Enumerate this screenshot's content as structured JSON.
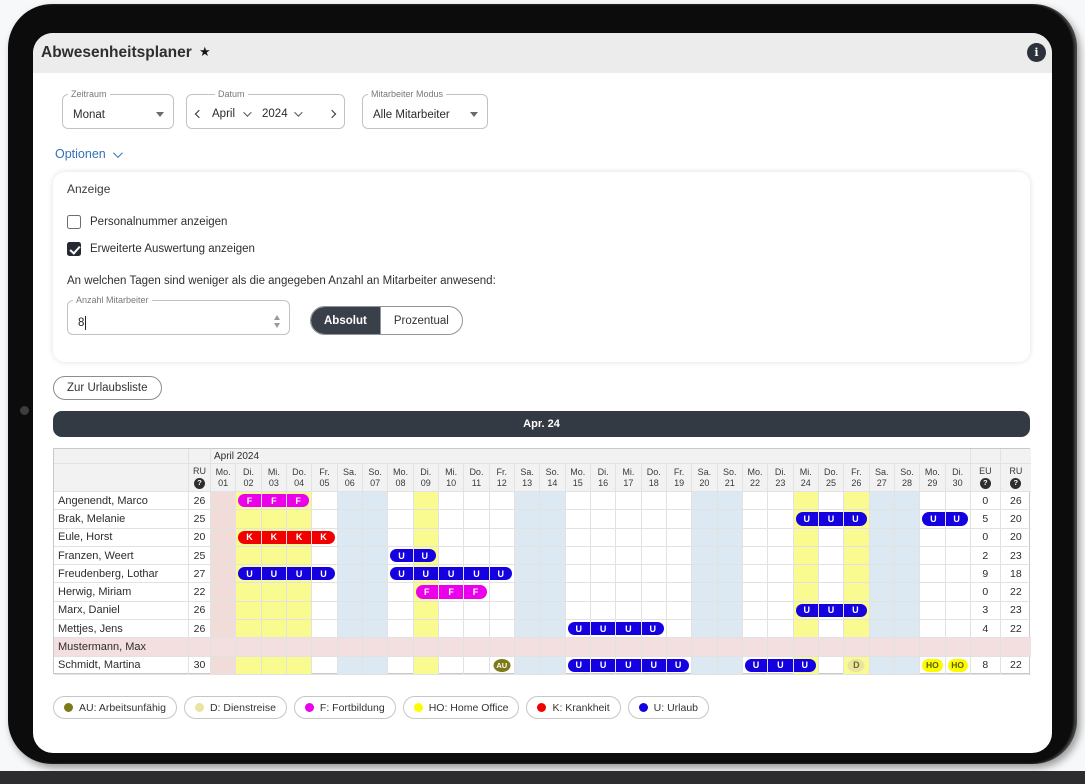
{
  "app": {
    "title": "Abwesenheitsplaner",
    "star": "★",
    "info_icon": "i"
  },
  "colors": {
    "bar": "#343a43",
    "link": "#3470b5",
    "toggle_selected": "#3a4049"
  },
  "filters": {
    "zeitraum": {
      "label": "Zeitraum",
      "value": "Monat"
    },
    "datum": {
      "label": "Datum",
      "month": "April",
      "year": "2024"
    },
    "mitarbeiter_modus": {
      "label": "Mitarbeiter Modus",
      "value": "Alle Mitarbeiter"
    }
  },
  "options": {
    "toggle_label": "Optionen",
    "section_label": "Anzeige",
    "checkboxes": [
      {
        "label": "Personalnummer anzeigen",
        "checked": false
      },
      {
        "label": "Erweiterte Auswertung anzeigen",
        "checked": true
      }
    ],
    "question": "An welchen Tagen sind weniger als die angegeben Anzahl an Mitarbeiter anwesend:",
    "anzahl": {
      "label": "Anzahl Mitarbeiter",
      "value": "8"
    },
    "mode_toggle": {
      "options": [
        "Absolut",
        "Prozentual"
      ],
      "selected": "Absolut"
    }
  },
  "actions": {
    "urlaubsliste_label": "Zur Urlaubsliste"
  },
  "period_bar": {
    "label": "Apr. 24"
  },
  "calendar": {
    "month_header": "April 2024",
    "ru_col_label": "RU",
    "eu_col_label": "EU",
    "ru_right_col_label": "RU",
    "help_glyph": "?",
    "days": [
      {
        "w": "Mo.",
        "n": "01"
      },
      {
        "w": "Di.",
        "n": "02"
      },
      {
        "w": "Mi.",
        "n": "03"
      },
      {
        "w": "Do.",
        "n": "04"
      },
      {
        "w": "Fr.",
        "n": "05"
      },
      {
        "w": "Sa.",
        "n": "06"
      },
      {
        "w": "So.",
        "n": "07"
      },
      {
        "w": "Mo.",
        "n": "08"
      },
      {
        "w": "Di.",
        "n": "09"
      },
      {
        "w": "Mi.",
        "n": "10"
      },
      {
        "w": "Do.",
        "n": "11"
      },
      {
        "w": "Fr.",
        "n": "12"
      },
      {
        "w": "Sa.",
        "n": "13"
      },
      {
        "w": "So.",
        "n": "14"
      },
      {
        "w": "Mo.",
        "n": "15"
      },
      {
        "w": "Di.",
        "n": "16"
      },
      {
        "w": "Mi.",
        "n": "17"
      },
      {
        "w": "Do.",
        "n": "18"
      },
      {
        "w": "Fr.",
        "n": "19"
      },
      {
        "w": "Sa.",
        "n": "20"
      },
      {
        "w": "So.",
        "n": "21"
      },
      {
        "w": "Mo.",
        "n": "22"
      },
      {
        "w": "Di.",
        "n": "23"
      },
      {
        "w": "Mi.",
        "n": "24"
      },
      {
        "w": "Do.",
        "n": "25"
      },
      {
        "w": "Fr.",
        "n": "26"
      },
      {
        "w": "Sa.",
        "n": "27"
      },
      {
        "w": "So.",
        "n": "28"
      },
      {
        "w": "Mo.",
        "n": "29"
      },
      {
        "w": "Di.",
        "n": "30"
      }
    ],
    "weekend_days": [
      6,
      7,
      13,
      14,
      20,
      21,
      27,
      28
    ],
    "holiday_days": [
      1
    ],
    "highlight_days": [
      2,
      3,
      4,
      9,
      24,
      26
    ],
    "cell_colors": {
      "highlight": "#f9fa8f",
      "weekend": "#dde9f2",
      "holiday": "#f2dcda",
      "muster": "#f3dfdf"
    },
    "rows": [
      {
        "name": "Angenendt, Marco",
        "ru": "26",
        "eu": "0",
        "ru2": "26",
        "muster": false,
        "absences": [
          {
            "d": 2,
            "c": "F"
          },
          {
            "d": 3,
            "c": "F"
          },
          {
            "d": 4,
            "c": "F"
          }
        ]
      },
      {
        "name": "Brak, Melanie",
        "ru": "25",
        "eu": "5",
        "ru2": "20",
        "muster": false,
        "absences": [
          {
            "d": 24,
            "c": "U"
          },
          {
            "d": 25,
            "c": "U"
          },
          {
            "d": 26,
            "c": "U"
          },
          {
            "d": 29,
            "c": "U"
          },
          {
            "d": 30,
            "c": "U"
          }
        ]
      },
      {
        "name": "Eule, Horst",
        "ru": "20",
        "eu": "0",
        "ru2": "20",
        "muster": false,
        "absences": [
          {
            "d": 2,
            "c": "K"
          },
          {
            "d": 3,
            "c": "K"
          },
          {
            "d": 4,
            "c": "K"
          },
          {
            "d": 5,
            "c": "K"
          }
        ]
      },
      {
        "name": "Franzen, Weert",
        "ru": "25",
        "eu": "2",
        "ru2": "23",
        "muster": false,
        "absences": [
          {
            "d": 8,
            "c": "U"
          },
          {
            "d": 9,
            "c": "U"
          }
        ]
      },
      {
        "name": "Freudenberg, Lothar",
        "ru": "27",
        "eu": "9",
        "ru2": "18",
        "muster": false,
        "absences": [
          {
            "d": 2,
            "c": "U"
          },
          {
            "d": 3,
            "c": "U"
          },
          {
            "d": 4,
            "c": "U"
          },
          {
            "d": 5,
            "c": "U"
          },
          {
            "d": 8,
            "c": "U"
          },
          {
            "d": 9,
            "c": "U"
          },
          {
            "d": 10,
            "c": "U"
          },
          {
            "d": 11,
            "c": "U"
          },
          {
            "d": 12,
            "c": "U"
          }
        ]
      },
      {
        "name": "Herwig, Miriam",
        "ru": "22",
        "eu": "0",
        "ru2": "22",
        "muster": false,
        "absences": [
          {
            "d": 9,
            "c": "F"
          },
          {
            "d": 10,
            "c": "F"
          },
          {
            "d": 11,
            "c": "F"
          }
        ]
      },
      {
        "name": "Marx, Daniel",
        "ru": "26",
        "eu": "3",
        "ru2": "23",
        "muster": false,
        "absences": [
          {
            "d": 24,
            "c": "U"
          },
          {
            "d": 25,
            "c": "U"
          },
          {
            "d": 26,
            "c": "U"
          }
        ]
      },
      {
        "name": "Mettjes, Jens",
        "ru": "26",
        "eu": "4",
        "ru2": "22",
        "muster": false,
        "absences": [
          {
            "d": 15,
            "c": "U"
          },
          {
            "d": 16,
            "c": "U"
          },
          {
            "d": 17,
            "c": "U"
          },
          {
            "d": 18,
            "c": "U"
          }
        ]
      },
      {
        "name": "Mustermann, Max",
        "ru": "",
        "eu": "",
        "ru2": "",
        "muster": true,
        "absences": []
      },
      {
        "name": "Schmidt, Martina",
        "ru": "30",
        "eu": "8",
        "ru2": "22",
        "muster": false,
        "absences": [
          {
            "d": 12,
            "c": "AU"
          },
          {
            "d": 15,
            "c": "U"
          },
          {
            "d": 16,
            "c": "U"
          },
          {
            "d": 17,
            "c": "U"
          },
          {
            "d": 18,
            "c": "U"
          },
          {
            "d": 19,
            "c": "U"
          },
          {
            "d": 22,
            "c": "U"
          },
          {
            "d": 23,
            "c": "U"
          },
          {
            "d": 24,
            "c": "U"
          },
          {
            "d": 26,
            "c": "D"
          },
          {
            "d": 29,
            "c": "HO"
          },
          {
            "d": 30,
            "c": "HO"
          }
        ]
      }
    ]
  },
  "legend": [
    {
      "code": "AU",
      "label": "AU: Arbeitsunfähig",
      "color": "#7d7a17"
    },
    {
      "code": "D",
      "label": "D: Dienstreise",
      "color": "#e9e4a2"
    },
    {
      "code": "F",
      "label": "F: Fortbildung",
      "color": "#ea00ea"
    },
    {
      "code": "HO",
      "label": "HO: Home Office",
      "color": "#fcfc00"
    },
    {
      "code": "K",
      "label": "K: Krankheit",
      "color": "#f20000"
    },
    {
      "code": "U",
      "label": "U: Urlaub",
      "color": "#1500e0"
    }
  ]
}
